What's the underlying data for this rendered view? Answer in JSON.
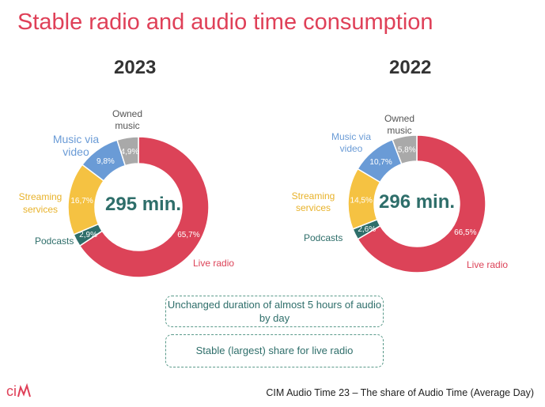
{
  "title": "Stable radio and audio time consumption",
  "colors": {
    "Live radio": "#dc4358",
    "Podcasts": "#2e6e6a",
    "Streaming services": "#f5c242",
    "Music via video": "#6a9bd6",
    "Owned music": "#a9a9a9"
  },
  "chart_data": [
    {
      "type": "pie",
      "variant": "donut",
      "title": "2023",
      "center_label": "295 min.",
      "categories": [
        "Live radio",
        "Podcasts",
        "Streaming services",
        "Music via video",
        "Owned music"
      ],
      "values": [
        65.7,
        2.9,
        16.7,
        9.8,
        4.9
      ],
      "value_labels": [
        "65,7%",
        "2,9%",
        "16,7%",
        "9,8%",
        "4,9%"
      ]
    },
    {
      "type": "pie",
      "variant": "donut",
      "title": "2022",
      "center_label": "296 min.",
      "categories": [
        "Live radio",
        "Podcasts",
        "Streaming services",
        "Music via video",
        "Owned music"
      ],
      "values": [
        66.5,
        2.6,
        14.5,
        10.7,
        5.8
      ],
      "value_labels": [
        "66,5%",
        "2,6%",
        "14,5%",
        "10,7%",
        "5,8%"
      ]
    }
  ],
  "labels": {
    "live": "Live radio",
    "podcasts": "Podcasts",
    "streaming": "Streaming services",
    "video": "Music via video",
    "owned": "Owned music"
  },
  "notes": [
    "Unchanged duration of almost 5 hours of audio by day",
    "Stable (largest) share for live radio"
  ],
  "footer": "CIM Audio Time 23 – The share of Audio Time (Average Day)",
  "logo": "CIM"
}
